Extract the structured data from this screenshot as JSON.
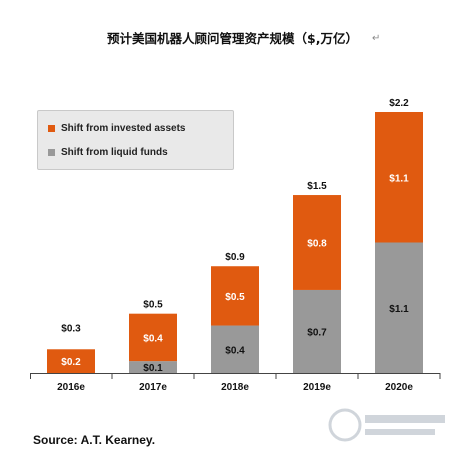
{
  "title": "预计美国机器人顾问管理资产规模（$,万亿）",
  "paragraph_mark": "↵",
  "source": "Source: A.T. Kearney.",
  "colors": {
    "invested": "#e05a10",
    "liquid": "#999999",
    "axis": "#444444"
  },
  "chart_data": {
    "type": "bar",
    "stacked": true,
    "categories": [
      "2016e",
      "2017e",
      "2018e",
      "2019e",
      "2020e"
    ],
    "series": [
      {
        "name": "Shift from liquid funds",
        "values": [
          0,
          0.1,
          0.4,
          0.7,
          1.1
        ],
        "labels": [
          "",
          "$0.1",
          "$0.4",
          "$0.7",
          "$1.1"
        ]
      },
      {
        "name": "Shift from invested assets",
        "values": [
          0.2,
          0.4,
          0.5,
          0.8,
          1.1
        ],
        "labels": [
          "$0.2",
          "$0.4",
          "$0.5",
          "$0.8",
          "$1.1"
        ]
      }
    ],
    "totals": [
      0.3,
      0.5,
      0.9,
      1.5,
      2.2
    ],
    "total_labels": [
      "$0.3",
      "$0.5",
      "$0.9",
      "$1.5",
      "$2.2"
    ],
    "ylim": [
      0,
      2.2
    ],
    "grid": false,
    "legend": "top-left"
  }
}
